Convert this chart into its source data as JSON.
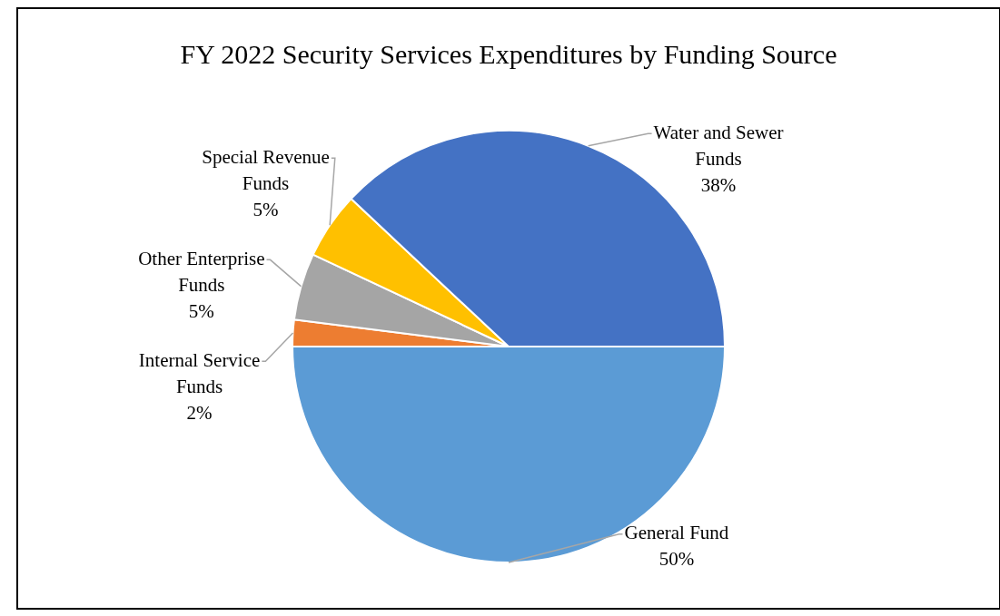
{
  "chart_data": {
    "type": "pie",
    "title": "FY 2022 Security Services Expenditures by Funding Source",
    "categories": [
      "General Fund",
      "Internal Service Funds",
      "Other Enterprise Funds",
      "Special Revenue Funds",
      "Water and Sewer Funds"
    ],
    "values": [
      50,
      2,
      5,
      5,
      38
    ],
    "value_labels": [
      "50%",
      "2%",
      "5%",
      "5%",
      "38%"
    ],
    "colors": [
      "#5b9bd5",
      "#ed7d31",
      "#a5a5a5",
      "#ffc000",
      "#4472c4"
    ],
    "legend": false
  }
}
